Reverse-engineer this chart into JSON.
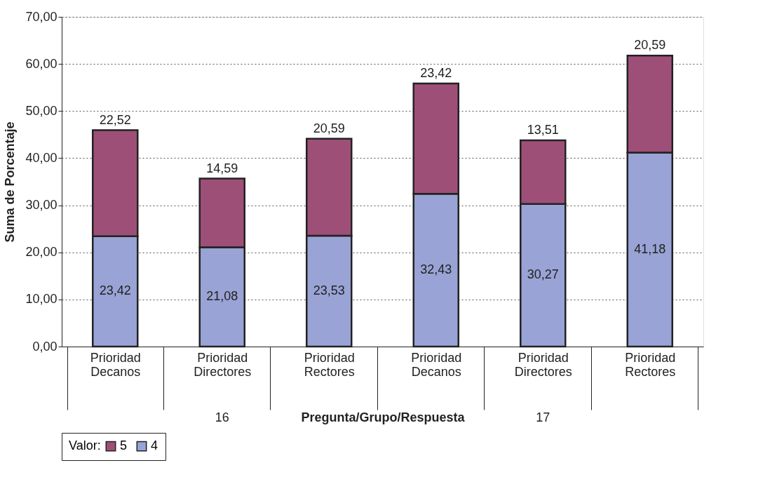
{
  "chart_data": {
    "type": "bar",
    "stacked": true,
    "xlabel": "Pregunta/Grupo/Respuesta",
    "ylabel": "Suma de Porcentaje",
    "legend_title": "Valor:",
    "legend": "bottom",
    "grid": "y",
    "categories": [
      "Prioridad Decanos",
      "Prioridad Directores",
      "Prioridad Rectores",
      "Prioridad Decanos",
      "Prioridad Directores",
      "Prioridad Rectores"
    ],
    "annotations": [
      "16",
      "17"
    ],
    "ylim": [
      0,
      70
    ],
    "yticks": [
      {
        "value": 0,
        "label": "0,00"
      },
      {
        "value": 10,
        "label": "10,00"
      },
      {
        "value": 20,
        "label": "20,00"
      },
      {
        "value": 30,
        "label": "30,00"
      },
      {
        "value": 40,
        "label": "40,00"
      },
      {
        "value": 50,
        "label": "50,00"
      },
      {
        "value": 60,
        "label": "60,00"
      },
      {
        "value": 70,
        "label": "70,00"
      }
    ],
    "series": [
      {
        "name": "4",
        "color": "#99a3d5",
        "values": [
          23.42,
          21.08,
          23.53,
          32.43,
          30.27,
          41.18
        ],
        "value_labels": [
          "23,42",
          "21,08",
          "23,53",
          "32,43",
          "30,27",
          "41,18"
        ]
      },
      {
        "name": "5",
        "color": "#9e4f77",
        "values": [
          22.52,
          14.59,
          20.59,
          23.42,
          13.51,
          20.59
        ],
        "value_labels": [
          "22,52",
          "14,59",
          "20,59",
          "23,42",
          "13,51",
          "20,59"
        ]
      }
    ]
  }
}
